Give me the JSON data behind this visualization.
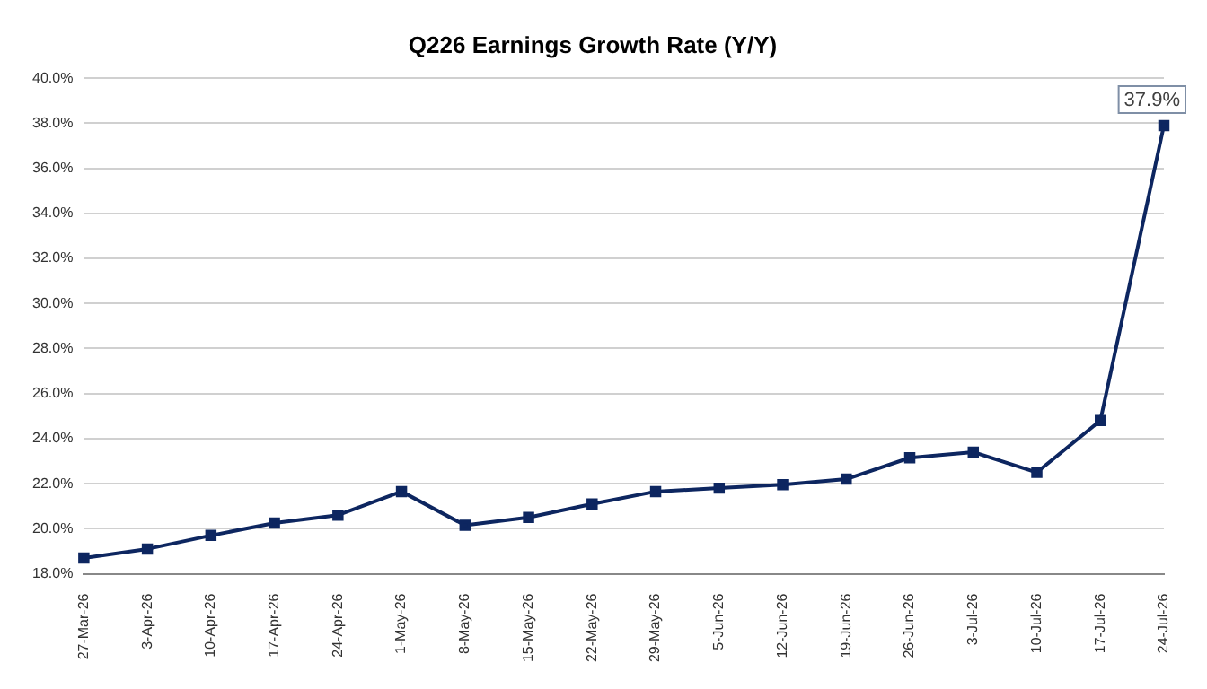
{
  "chart_data": {
    "type": "line",
    "title": "Q226 Earnings Growth Rate (Y/Y)",
    "categories": [
      "27-Mar-26",
      "3-Apr-26",
      "10-Apr-26",
      "17-Apr-26",
      "24-Apr-26",
      "1-May-26",
      "8-May-26",
      "15-May-26",
      "22-May-26",
      "29-May-26",
      "5-Jun-26",
      "12-Jun-26",
      "19-Jun-26",
      "26-Jun-26",
      "3-Jul-26",
      "10-Jul-26",
      "17-Jul-26",
      "24-Jul-26"
    ],
    "series": [
      {
        "color": "#0d2660",
        "values": [
          18.7,
          19.1,
          19.7,
          20.25,
          20.6,
          21.65,
          20.15,
          20.5,
          21.1,
          21.65,
          21.8,
          21.95,
          22.2,
          23.15,
          23.4,
          22.5,
          24.8,
          37.9
        ]
      }
    ],
    "ylim": [
      18,
      40
    ],
    "yticks": [
      {
        "value": 18,
        "label": "18.0%"
      },
      {
        "value": 20,
        "label": "20.0%"
      },
      {
        "value": 22,
        "label": "22.0%"
      },
      {
        "value": 24,
        "label": "24.0%"
      },
      {
        "value": 26,
        "label": "26.0%"
      },
      {
        "value": 28,
        "label": "28.0%"
      },
      {
        "value": 30,
        "label": "30.0%"
      },
      {
        "value": 32,
        "label": "32.0%"
      },
      {
        "value": 34,
        "label": "34.0%"
      },
      {
        "value": 36,
        "label": "36.0%"
      },
      {
        "value": 38,
        "label": "38.0%"
      },
      {
        "value": 40,
        "label": "40.0%"
      }
    ],
    "annotations": [
      {
        "text": "37.9%",
        "x": "24-Jul-26",
        "y": 37.9
      }
    ],
    "grid": "y",
    "legend": false,
    "marker": "square",
    "line_style": "solid"
  }
}
